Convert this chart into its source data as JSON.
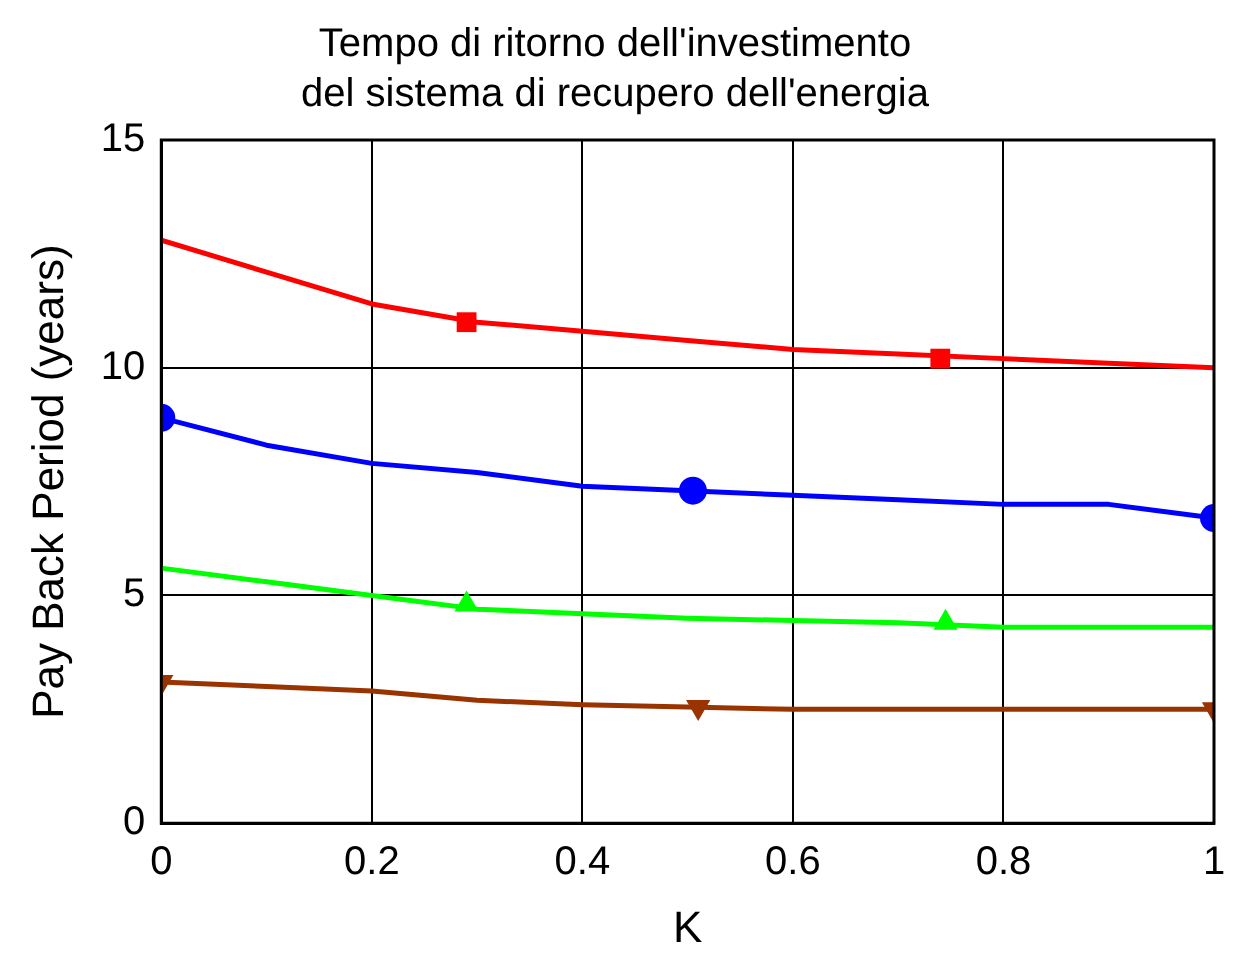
{
  "chart_data": {
    "type": "line",
    "title": "Tempo di ritorno dell'investimento\ndel sistema di recupero dell'energia",
    "xlabel": "K",
    "ylabel": "Pay Back Period (years)",
    "x": [
      0,
      0.1,
      0.2,
      0.3,
      0.4,
      0.5,
      0.6,
      0.7,
      0.8,
      0.9,
      1
    ],
    "series": [
      {
        "color": "#ff0000",
        "values": [
          12.8,
          12.1,
          11.4,
          11.0,
          10.8,
          10.6,
          10.4,
          10.3,
          10.2,
          10.1,
          10.0
        ]
      },
      {
        "color": "#0000ff",
        "values": [
          8.9,
          8.3,
          7.9,
          7.7,
          7.4,
          7.3,
          7.2,
          7.1,
          7.0,
          7.0,
          6.7
        ]
      },
      {
        "color": "#00ff00",
        "values": [
          5.6,
          5.3,
          5.0,
          4.7,
          4.6,
          4.5,
          4.45,
          4.4,
          4.3,
          4.3,
          4.3
        ]
      },
      {
        "color": "#993300",
        "values": [
          3.1,
          3.0,
          2.9,
          2.7,
          2.6,
          2.55,
          2.5,
          2.5,
          2.5,
          2.5,
          2.5
        ]
      },
      {
        "type": "scatter",
        "marker": "square",
        "color": "#ff0000",
        "x": [
          0.29,
          0.74
        ],
        "values": [
          11.0,
          10.2
        ]
      },
      {
        "type": "scatter",
        "marker": "circle",
        "color": "#0000ff",
        "x": [
          0,
          0.505,
          1
        ],
        "values": [
          8.9,
          7.3,
          6.7
        ]
      },
      {
        "type": "scatter",
        "marker": "triangle",
        "color": "#00ff00",
        "x": [
          0.29,
          0.745
        ],
        "values": [
          4.8,
          4.4
        ]
      },
      {
        "type": "scatter",
        "marker": "triangle-down",
        "color": "#993300",
        "x": [
          0,
          0.51,
          1
        ],
        "values": [
          3.1,
          2.55,
          2.5
        ]
      }
    ],
    "xlim": [
      0,
      1
    ],
    "xticks": [
      0,
      0.2,
      0.4,
      0.6,
      0.8,
      1
    ],
    "ylim": [
      0,
      15
    ],
    "yticks": [
      0,
      5,
      10,
      15
    ],
    "grid": true,
    "legend": false,
    "line_style": "solid"
  }
}
